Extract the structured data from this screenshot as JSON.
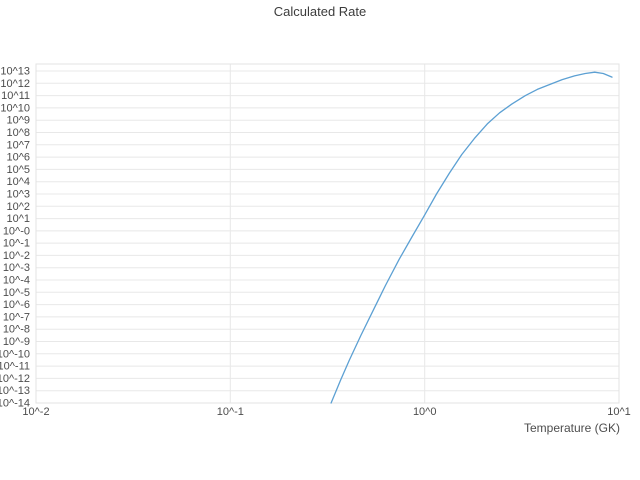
{
  "colors": {
    "line": "#5ca0d3",
    "grid": "#e8e8e8",
    "border": "#e3e3e3",
    "tick": "#4d4d4d",
    "title": "#3c3c3c"
  },
  "chart_data": {
    "type": "line",
    "title": "Calculated Rate",
    "xlabel": "Temperature (GK)",
    "ylabel": "",
    "xscale": "log",
    "yscale": "log",
    "grid": true,
    "legend": "none",
    "xlim_log10": [
      -2,
      1
    ],
    "ylim_log10": [
      -14,
      13
    ],
    "x_ticks": [
      {
        "label": "10^-2",
        "log10": -2
      },
      {
        "label": "10^-1",
        "log10": -1
      },
      {
        "label": "10^0",
        "log10": 0
      },
      {
        "label": "10^1",
        "log10": 1
      }
    ],
    "y_ticks": [
      {
        "label": "10^13",
        "exp": 13
      },
      {
        "label": "10^12",
        "exp": 12
      },
      {
        "label": "10^11",
        "exp": 11
      },
      {
        "label": "10^10",
        "exp": 10
      },
      {
        "label": "10^9",
        "exp": 9
      },
      {
        "label": "10^8",
        "exp": 8
      },
      {
        "label": "10^7",
        "exp": 7
      },
      {
        "label": "10^6",
        "exp": 6
      },
      {
        "label": "10^5",
        "exp": 5
      },
      {
        "label": "10^4",
        "exp": 4
      },
      {
        "label": "10^3",
        "exp": 3
      },
      {
        "label": "10^2",
        "exp": 2
      },
      {
        "label": "10^1",
        "exp": 1
      },
      {
        "label": "10^-0",
        "exp": 0
      },
      {
        "label": "10^-1",
        "exp": -1
      },
      {
        "label": "10^-2",
        "exp": -2
      },
      {
        "label": "10^-3",
        "exp": -3
      },
      {
        "label": "10^-4",
        "exp": -4
      },
      {
        "label": "10^-5",
        "exp": -5
      },
      {
        "label": "10^-6",
        "exp": -6
      },
      {
        "label": "10^-7",
        "exp": -7
      },
      {
        "label": "10^-8",
        "exp": -8
      },
      {
        "label": "10^-9",
        "exp": -9
      },
      {
        "label": "10^-10",
        "exp": -10
      },
      {
        "label": "10^-11",
        "exp": -11
      },
      {
        "label": "10^-12",
        "exp": -12
      },
      {
        "label": "10^-13",
        "exp": -13
      },
      {
        "label": "10^-14",
        "exp": -14
      }
    ],
    "series": [
      {
        "name": "calculated-rate",
        "x": [
          0.33,
          0.37,
          0.41,
          0.47,
          0.55,
          0.63,
          0.74,
          0.86,
          1.0,
          1.15,
          1.34,
          1.55,
          1.8,
          2.1,
          2.43,
          2.8,
          3.3,
          3.8,
          4.4,
          5.1,
          5.9,
          6.7,
          7.5,
          8.3,
          9.2
        ],
        "log10_y": [
          -14.0,
          -12.1,
          -10.5,
          -8.5,
          -6.3,
          -4.4,
          -2.3,
          -0.5,
          1.3,
          3.0,
          4.7,
          6.2,
          7.5,
          8.7,
          9.6,
          10.3,
          11.0,
          11.5,
          11.9,
          12.3,
          12.6,
          12.8,
          12.9,
          12.8,
          12.5
        ]
      }
    ]
  }
}
